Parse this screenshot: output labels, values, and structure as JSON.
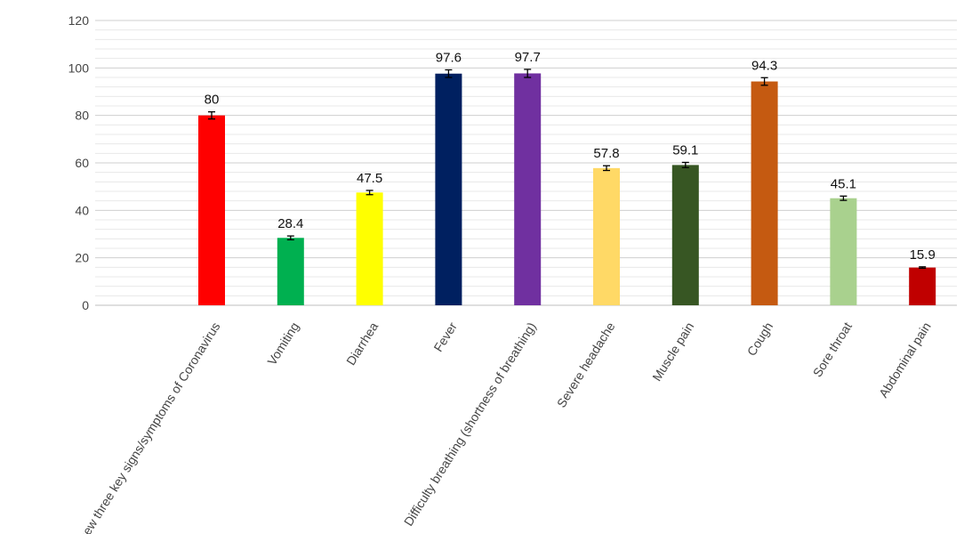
{
  "chart_data": {
    "type": "bar",
    "categories": [
      "Knew three key signs/symptoms of Coronavirus",
      "Vomiting",
      "Diarrhea",
      "Fever",
      "Difficulty breathing (shortness of breathing)",
      "Severe headache",
      "Muscle pain",
      "Cough",
      "Sore throat",
      "Abdominal pain"
    ],
    "values": [
      80,
      28.4,
      47.5,
      97.6,
      97.7,
      57.8,
      59.1,
      94.3,
      45.1,
      15.9
    ],
    "data_labels": [
      "80",
      "28.4",
      "47.5",
      "97.6",
      "97.7",
      "57.8",
      "59.1",
      "94.3",
      "45.1",
      "15.9"
    ],
    "error": [
      1.5,
      0.8,
      0.9,
      1.6,
      1.7,
      1.0,
      1.1,
      1.6,
      0.9,
      0.3
    ],
    "colors": [
      "#ff0000",
      "#00b050",
      "#ffff00",
      "#002060",
      "#7030a0",
      "#ffd966",
      "#375623",
      "#c55a11",
      "#a9d18e",
      "#c00000"
    ],
    "title": "",
    "xlabel": "",
    "ylabel": "",
    "ylim": [
      0,
      120
    ],
    "yticks": [
      0,
      20,
      40,
      60,
      80,
      100,
      120
    ],
    "ytick_labels": [
      "0",
      "20",
      "40",
      "60",
      "80",
      "100",
      "120"
    ],
    "grid": true,
    "gridline_color": "#d9d9d9",
    "legend": "none"
  }
}
